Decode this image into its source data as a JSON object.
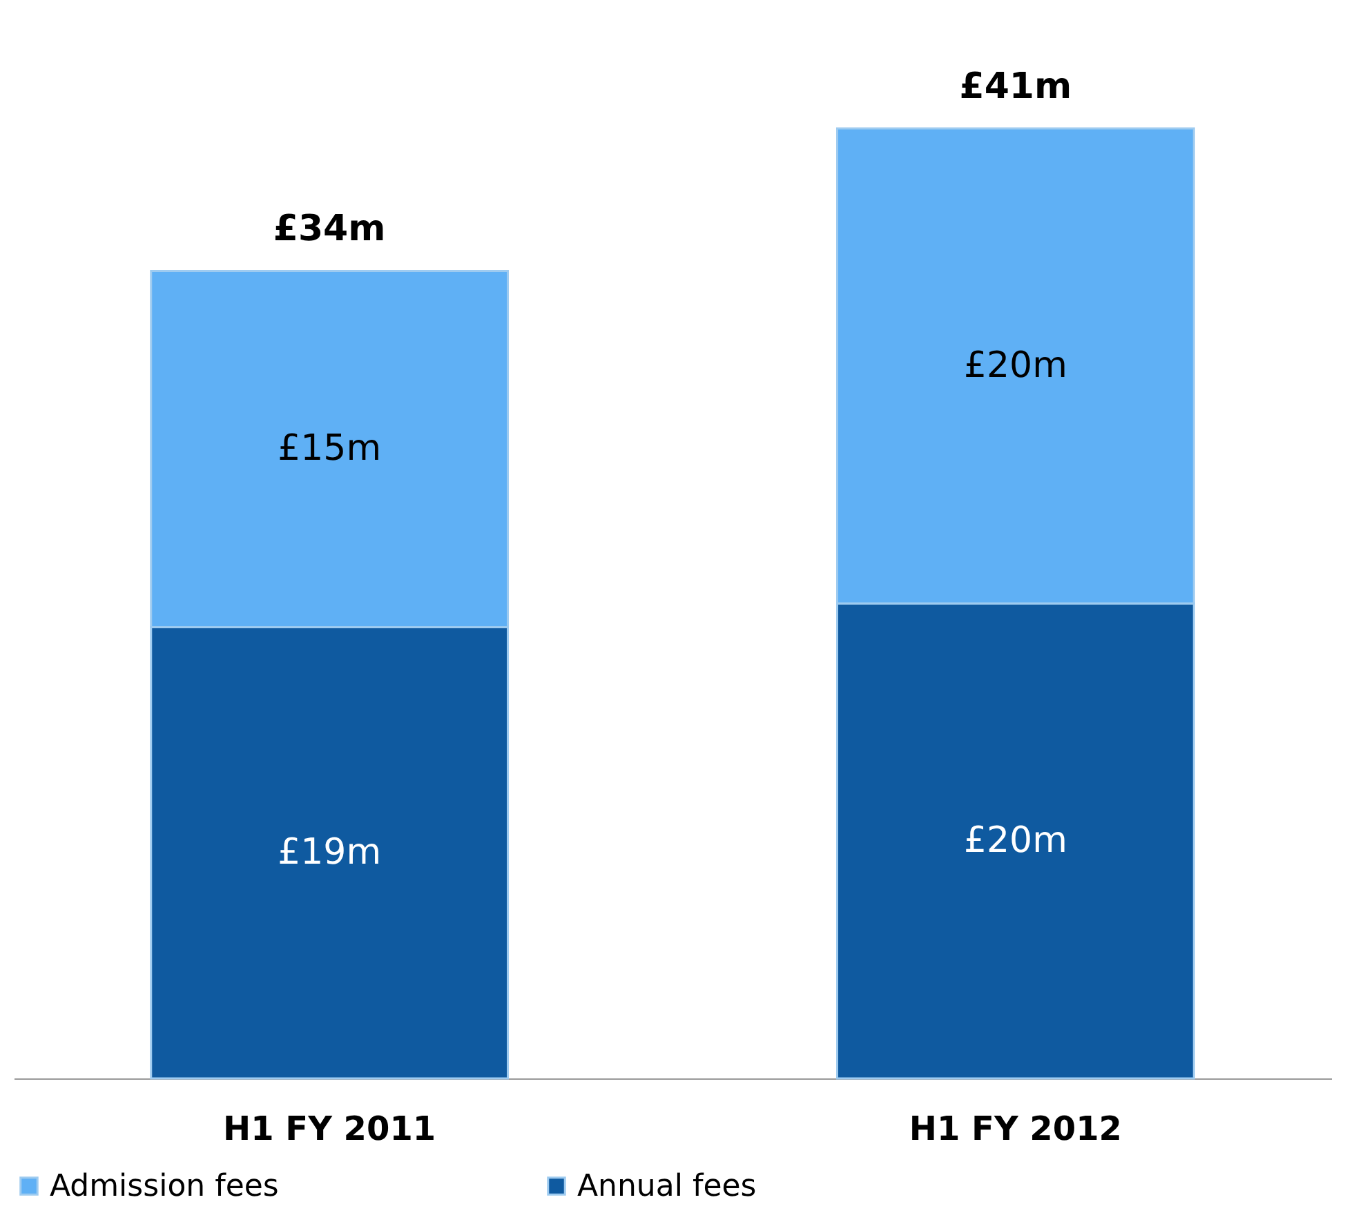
{
  "chart_data": {
    "type": "bar",
    "stacked": true,
    "categories": [
      "H1 FY 2011",
      "H1 FY 2012"
    ],
    "series": [
      {
        "name": "Annual fees",
        "color": "#0f5aa0",
        "values": [
          19,
          20
        ],
        "value_labels": [
          "£19m",
          "£20m"
        ]
      },
      {
        "name": "Admission fees",
        "color": "#5fb0f5",
        "values": [
          15,
          20
        ],
        "value_labels": [
          "£15m",
          "£20m"
        ]
      }
    ],
    "totals": [
      "£34m",
      "£41m"
    ],
    "legend": "bottom",
    "grid": false
  }
}
